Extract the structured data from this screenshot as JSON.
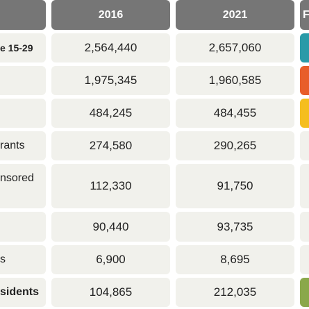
{
  "table": {
    "header": [
      "2016",
      "2021",
      "F"
    ],
    "rows": [
      {
        "label": "e 15-29",
        "values": [
          "2,564,440",
          "2,657,060"
        ]
      },
      {
        "label": "",
        "values": [
          "1,975,345",
          "1,960,585"
        ]
      },
      {
        "label": "",
        "values": [
          "484,245",
          "484,455"
        ]
      },
      {
        "label": "rants",
        "values": [
          "274,580",
          "290,265"
        ]
      },
      {
        "label": "nsored",
        "values": [
          "112,330",
          "91,750"
        ]
      },
      {
        "label": "",
        "values": [
          "90,440",
          "93,735"
        ]
      },
      {
        "label": "s",
        "values": [
          "6,900",
          "8,695"
        ]
      },
      {
        "label": "sidents",
        "values": [
          "104,865",
          "212,035"
        ]
      }
    ]
  }
}
